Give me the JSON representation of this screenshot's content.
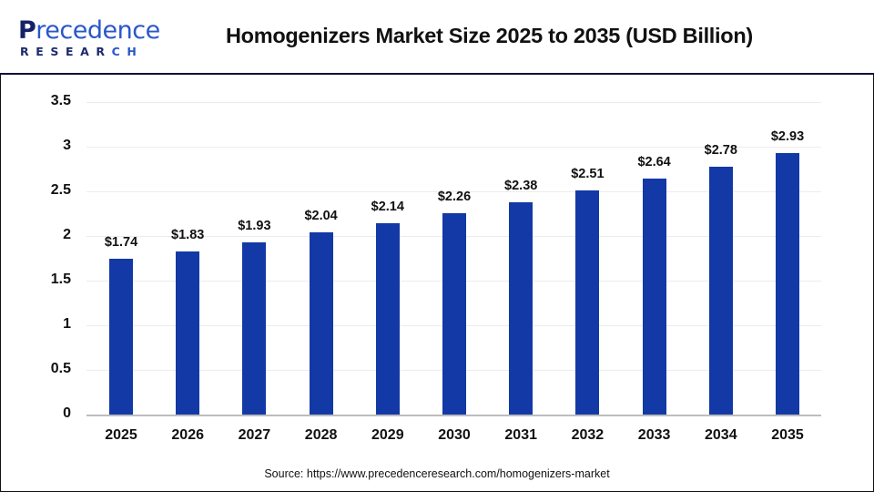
{
  "header": {
    "logo": {
      "line1_first": "P",
      "line1_rest": "recedence",
      "line2_main": "RESEAR",
      "line2_accent": "CH"
    },
    "title": "Homogenizers Market Size 2025 to 2035 (USD Billion)"
  },
  "footer": {
    "source": "Source: https://www.precedenceresearch.com/homogenizers-market"
  },
  "colors": {
    "bar": "#1239a6",
    "grid": "#ececec",
    "axis": "#bdbdbd",
    "header_rule": "#0b0f3a"
  },
  "chart_data": {
    "type": "bar",
    "title": "Homogenizers Market Size 2025 to 2035 (USD Billion)",
    "xlabel": "",
    "ylabel": "",
    "categories": [
      "2025",
      "2026",
      "2027",
      "2028",
      "2029",
      "2030",
      "2031",
      "2032",
      "2033",
      "2034",
      "2035"
    ],
    "values": [
      1.74,
      1.83,
      1.93,
      2.04,
      2.14,
      2.26,
      2.38,
      2.51,
      2.64,
      2.78,
      2.93
    ],
    "value_labels": [
      "$1.74",
      "$1.83",
      "$1.93",
      "$2.04",
      "$2.14",
      "$2.26",
      "$2.38",
      "$2.51",
      "$2.64",
      "$2.78",
      "$2.93"
    ],
    "ylim": [
      0,
      3.5
    ],
    "yticks": [
      "0",
      "0.5",
      "1",
      "1.5",
      "2",
      "2.5",
      "3",
      "3.5"
    ],
    "ytick_values": [
      0,
      0.5,
      1,
      1.5,
      2,
      2.5,
      3,
      3.5
    ],
    "grid": true,
    "legend": null
  }
}
